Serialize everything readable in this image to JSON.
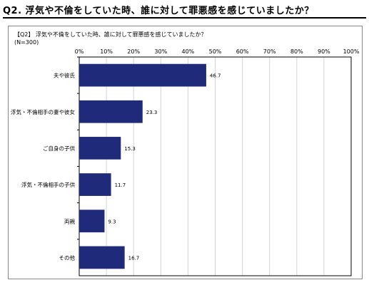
{
  "heading": "Q2. 浮気や不倫をしていた時、誰に対して罪悪感を感じていましたか？",
  "question": "【Q2】 浮気や不倫をしていた時、誰に対して罪悪感を感じていましたか？",
  "sample": "(N=300)",
  "colors": {
    "bar": "#1f2a7a",
    "grid": "#d6d6d6"
  },
  "chart_data": {
    "type": "bar",
    "orientation": "horizontal",
    "categories": [
      "夫や彼氏",
      "浮気・不倫相手の妻や彼女",
      "ご自身の子供",
      "浮気・不倫相手の子供",
      "両親",
      "その他"
    ],
    "values": [
      46.7,
      23.3,
      15.3,
      11.7,
      9.3,
      16.7
    ],
    "data_labels": [
      "46.7",
      "23.3",
      "15.3",
      "11.7",
      "9.3",
      "16.7"
    ],
    "x_ticks": [
      "0%",
      "10%",
      "20%",
      "30%",
      "40%",
      "50%",
      "60%",
      "70%",
      "80%",
      "90%",
      "100%"
    ],
    "xlim": [
      0,
      100
    ],
    "grid": true
  }
}
